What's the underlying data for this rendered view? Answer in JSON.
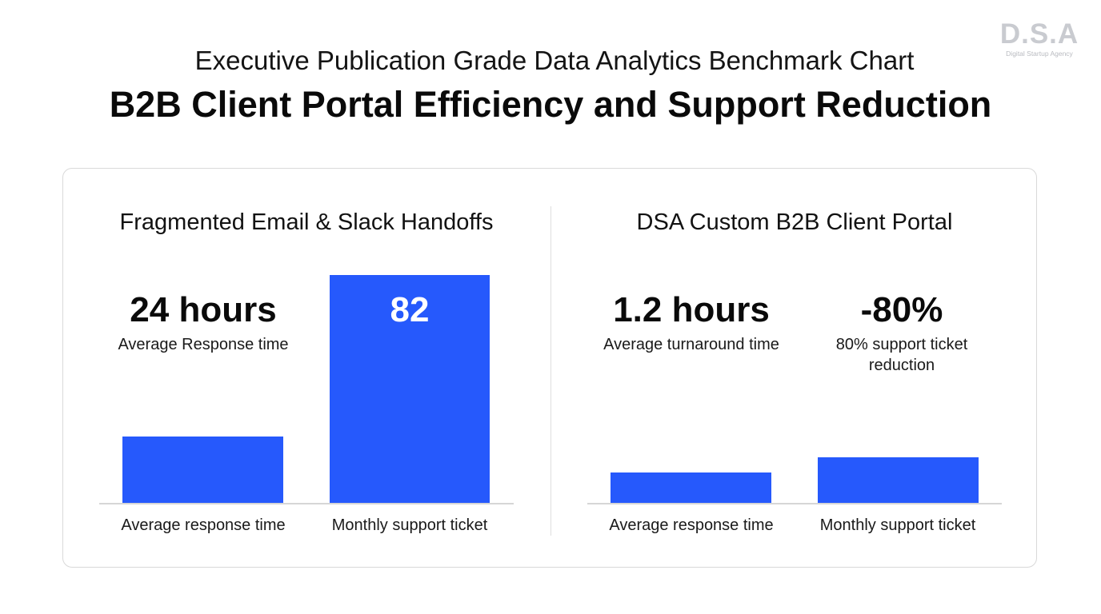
{
  "brand": {
    "mark": "D.S.A",
    "tagline": "Digital Startup Agency"
  },
  "header": {
    "supertitle": "Executive Publication Grade Data Analytics Benchmark Chart",
    "title": "B2B Client Portal Efficiency and Support Reduction"
  },
  "colors": {
    "bar": "#2659fc",
    "baseline": "#d6d6d6",
    "card_border": "#d9d9d9"
  },
  "chart_data": [
    {
      "type": "bar",
      "title": "Fragmented Email & Slack Handoffs",
      "categories": [
        "Average response time",
        "Monthly support ticket"
      ],
      "values": [
        24,
        82
      ],
      "ylim": [
        0,
        82
      ],
      "annotations": [
        {
          "value": "24 hours",
          "caption": "Average Response time"
        },
        {
          "value": "82",
          "caption": ""
        }
      ]
    },
    {
      "type": "bar",
      "title": "DSA Custom B2B Client Portal",
      "categories": [
        "Average response time",
        "Monthly support ticket"
      ],
      "values": [
        1.2,
        16.4
      ],
      "ylim": [
        0,
        82
      ],
      "annotations": [
        {
          "value": "1.2 hours",
          "caption": "Average turnaround time"
        },
        {
          "value": "-80%",
          "caption": "80% support ticket reduction"
        }
      ]
    }
  ]
}
